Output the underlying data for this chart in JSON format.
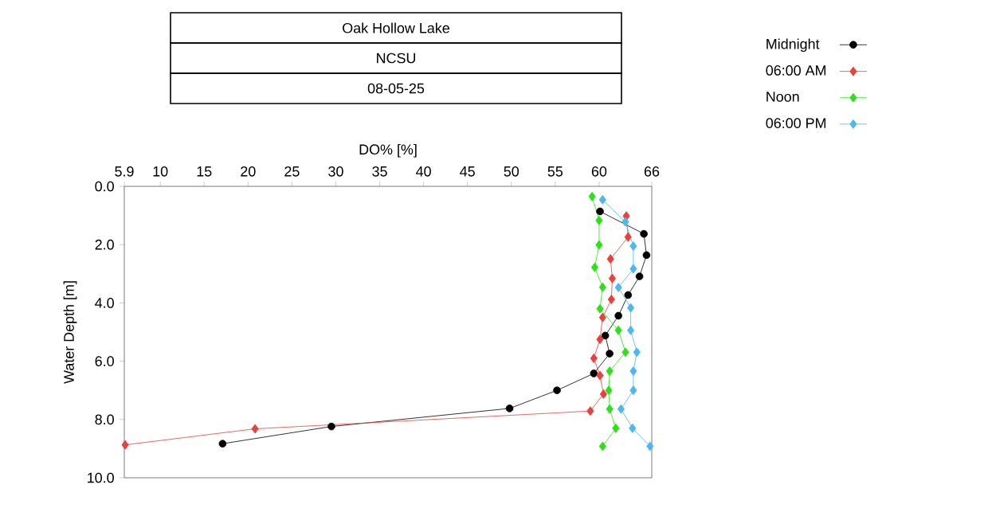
{
  "chart_data": {
    "type": "line",
    "title": "Oak Hollow Lake",
    "subtitle": "NCSU",
    "annotations": [
      "08-05-25"
    ],
    "xlabel": "DO% [%]",
    "ylabel": "Water Depth [m]",
    "xlim": [
      5.9,
      66
    ],
    "xticks": [
      5.9,
      10,
      15,
      20,
      25,
      30,
      35,
      40,
      45,
      50,
      55,
      60,
      66
    ],
    "ylim": [
      10,
      0
    ],
    "yticks": [
      {
        "value": 0,
        "label": "0.0"
      },
      {
        "value": 2,
        "label": "2.0"
      },
      {
        "value": 4,
        "label": "4.0"
      },
      {
        "value": 6,
        "label": "6.0"
      },
      {
        "value": 8,
        "label": "8.0"
      },
      {
        "value": 10,
        "label": "10.0"
      }
    ],
    "grid": false,
    "legend": "top right",
    "line_style": "solid",
    "series": [
      {
        "name": "Midnight",
        "color": "#000000",
        "marker": "circle",
        "x": [
          60.1,
          65.1,
          65.4,
          64.6,
          63.3,
          62.2,
          60.7,
          61.2,
          59.4,
          55.2,
          49.8,
          29.5,
          17.1
        ],
        "values": [
          0.86,
          1.63,
          2.36,
          3.09,
          3.73,
          4.44,
          5.12,
          5.74,
          6.42,
          7.0,
          7.62,
          8.24,
          8.83
        ]
      },
      {
        "name": "06:00 AM",
        "color": "#e8403c",
        "marker": "diamond",
        "x": [
          63.1,
          63.3,
          61.3,
          61.5,
          61.4,
          60.4,
          60.1,
          59.4,
          60.1,
          60.5,
          59.0,
          20.8,
          6.0
        ],
        "values": [
          1.02,
          1.74,
          2.49,
          3.16,
          3.88,
          4.5,
          5.25,
          5.9,
          6.49,
          7.13,
          7.71,
          8.32,
          8.87
        ]
      },
      {
        "name": "Noon",
        "color": "#2ee01a",
        "marker": "diamond",
        "x": [
          59.2,
          60.0,
          60.0,
          59.5,
          60.4,
          60.1,
          62.2,
          63.0,
          61.2,
          61.1,
          61.2,
          61.9,
          60.4
        ],
        "values": [
          0.35,
          1.17,
          2.01,
          2.78,
          3.46,
          4.2,
          4.94,
          5.69,
          6.34,
          7.0,
          7.64,
          8.3,
          8.92
        ]
      },
      {
        "name": "06:00 PM",
        "color": "#4db8ef",
        "marker": "diamond",
        "x": [
          60.4,
          63.0,
          63.9,
          63.9,
          62.2,
          63.6,
          63.6,
          64.3,
          63.9,
          63.9,
          62.5,
          63.8,
          65.8
        ],
        "values": [
          0.46,
          1.22,
          2.05,
          2.83,
          3.47,
          4.17,
          4.94,
          5.69,
          6.34,
          7.0,
          7.64,
          8.3,
          8.92
        ]
      }
    ]
  }
}
